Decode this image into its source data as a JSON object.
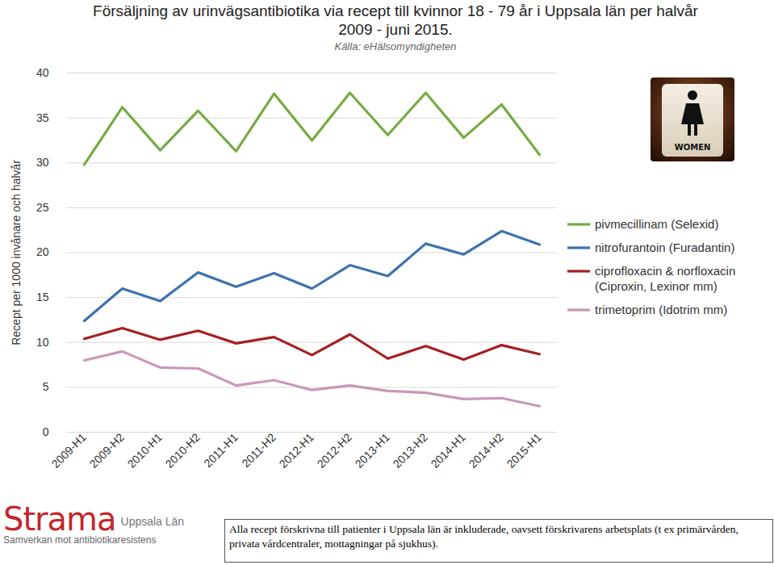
{
  "chart_data": {
    "type": "line",
    "title": "Försäljning av urinvägsantibiotika via recept till kvinnor 18 - 79 år i Uppsala län per halvår 2009 - juni 2015.",
    "subtitle": "Källa: eHälsomyndigheten",
    "y_label": "Recept per 1000 invånare och halvår",
    "categories": [
      "2009-H1",
      "2009-H2",
      "2010-H1",
      "2010-H2",
      "2011-H1",
      "2011-H2",
      "2012-H1",
      "2012-H2",
      "2013-H1",
      "2013-H2",
      "2014-H1",
      "2014-H2",
      "2015-H1"
    ],
    "series": [
      {
        "name": "pivmecillinam (Selexid)",
        "color": "#77ab43",
        "values": [
          29.8,
          36.2,
          31.4,
          35.8,
          31.3,
          37.7,
          32.5,
          37.8,
          33.1,
          37.8,
          32.8,
          36.5,
          30.9
        ]
      },
      {
        "name": "nitrofurantoin (Furadantin)",
        "color": "#3d72ad",
        "values": [
          12.4,
          16.0,
          14.6,
          17.8,
          16.2,
          17.7,
          16.0,
          18.6,
          17.4,
          21.0,
          19.8,
          22.4,
          20.9
        ]
      },
      {
        "name": "ciprofloxacin & norfloxacin (Ciproxin, Lexinor mm)",
        "color": "#a71f22",
        "values": [
          10.4,
          11.6,
          10.3,
          11.3,
          9.9,
          10.6,
          8.6,
          10.9,
          8.2,
          9.6,
          8.1,
          9.7,
          8.7
        ]
      },
      {
        "name": "trimetoprim (Idotrim mm)",
        "color": "#c997b6",
        "values": [
          8.0,
          9.0,
          7.2,
          7.1,
          5.2,
          5.8,
          4.7,
          5.2,
          4.6,
          4.4,
          3.7,
          3.8,
          2.9
        ]
      }
    ],
    "ylim": [
      0,
      40
    ],
    "yticks": [
      0,
      5,
      10,
      15,
      20,
      25,
      30,
      35,
      40
    ],
    "grid": true,
    "legend": "right"
  },
  "image_label": "WOMEN",
  "logo": {
    "name": "Strama",
    "region": "Uppsala Län",
    "tagline": "Samverkan mot antibiotikaresistens"
  },
  "footnote": "Alla recept förskrivna till patienter i Uppsala län är inkluderade, oavsett förskrivarens arbetsplats (t ex primärvården, privata vårdcentraler, mottagningar på sjukhus)."
}
